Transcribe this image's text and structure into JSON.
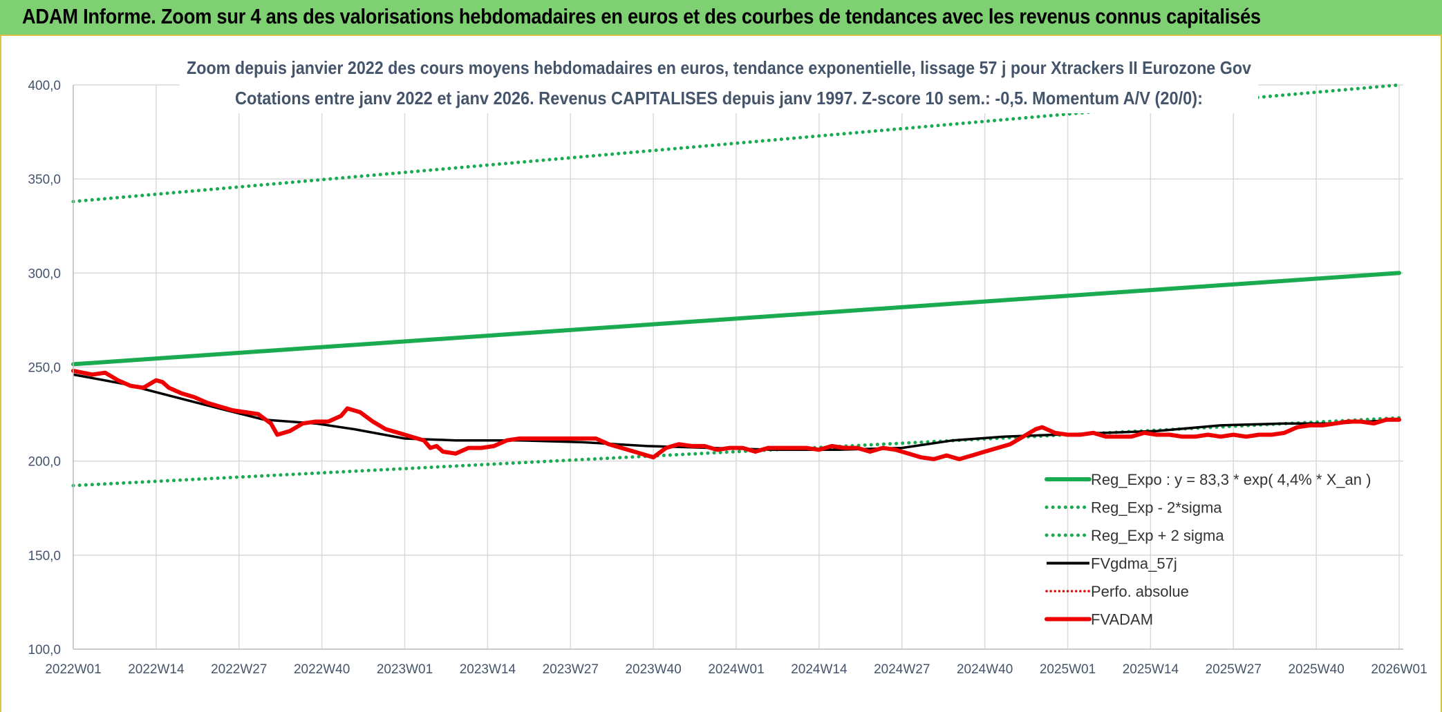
{
  "banner": {
    "title": "ADAM Informe. Zoom sur 4 ans des valorisations hebdomadaires en euros et des courbes de tendances avec les revenus connus capitalisés"
  },
  "colors": {
    "banner_bg": "#7fcf73",
    "trend_green": "#1aaa50",
    "black": "#000000",
    "red": "#ee0000",
    "text": "#44546a",
    "grid": "#d9d9d9"
  },
  "chart_data": {
    "type": "line",
    "title": "Zoom depuis janvier 2022 des cours moyens hebdomadaires en euros, tendance exponentielle, lissage 57 j pour Xtrackers II Eurozone Gov",
    "subtitle": "Cotations entre janv 2022 et janv 2026. Revenus CAPITALISES depuis janv 1997. Z-score 10 sem.: -0,5. Momentum A/V (20/0):",
    "ylim": [
      100,
      400
    ],
    "yticks": [
      "100,0",
      "150,0",
      "200,0",
      "250,0",
      "300,0",
      "350,0",
      "400,0"
    ],
    "ytick_values": [
      100,
      150,
      200,
      250,
      300,
      350,
      400
    ],
    "xticks": [
      "2022W01",
      "2022W14",
      "2022W27",
      "2022W40",
      "2023W01",
      "2023W14",
      "2023W27",
      "2023W40",
      "2024W01",
      "2024W14",
      "2024W27",
      "2024W40",
      "2025W01",
      "2025W14",
      "2025W27",
      "2025W40",
      "2026W01"
    ],
    "x_weeks_total": 208,
    "series": [
      {
        "name": "Reg_Expo : y = 83,3 * exp( 4,4% *  X_an )",
        "style": "solid-thick",
        "color": "#1aaa50",
        "points": [
          [
            0,
            251.5
          ],
          [
            208,
            300
          ]
        ]
      },
      {
        "name": "Reg_Exp - 2*sigma",
        "style": "dotted",
        "color": "#1aaa50",
        "points": [
          [
            0,
            187
          ],
          [
            208,
            223
          ]
        ]
      },
      {
        "name": "Reg_Exp + 2 sigma",
        "style": "dotted",
        "color": "#1aaa50",
        "points": [
          [
            0,
            338
          ],
          [
            208,
            400
          ]
        ]
      },
      {
        "name": "FVgdma_57j",
        "style": "solid",
        "color": "#000000",
        "points": [
          [
            0,
            246
          ],
          [
            8,
            241
          ],
          [
            16,
            234
          ],
          [
            24,
            227
          ],
          [
            30,
            222
          ],
          [
            38,
            220
          ],
          [
            44,
            217
          ],
          [
            52,
            212
          ],
          [
            60,
            211
          ],
          [
            70,
            211
          ],
          [
            80,
            210
          ],
          [
            90,
            208
          ],
          [
            100,
            207
          ],
          [
            110,
            206
          ],
          [
            120,
            206
          ],
          [
            130,
            207
          ],
          [
            138,
            211
          ],
          [
            146,
            213
          ],
          [
            154,
            214
          ],
          [
            162,
            215
          ],
          [
            170,
            216
          ],
          [
            180,
            219
          ],
          [
            190,
            220
          ],
          [
            198,
            220
          ],
          [
            208,
            222
          ]
        ]
      },
      {
        "name": "Perfo. absolue",
        "style": "dotted",
        "color": "#ee0000",
        "points": []
      },
      {
        "name": "FVADAM",
        "style": "solid-thick",
        "color": "#ee0000",
        "points": [
          [
            0,
            248
          ],
          [
            3,
            246
          ],
          [
            5,
            247
          ],
          [
            7,
            243
          ],
          [
            9,
            240
          ],
          [
            11,
            239
          ],
          [
            13,
            243
          ],
          [
            14,
            242
          ],
          [
            15,
            239
          ],
          [
            17,
            236
          ],
          [
            19,
            234
          ],
          [
            21,
            231
          ],
          [
            23,
            229
          ],
          [
            25,
            227
          ],
          [
            27,
            226
          ],
          [
            29,
            225
          ],
          [
            31,
            220
          ],
          [
            32,
            214
          ],
          [
            34,
            216
          ],
          [
            36,
            220
          ],
          [
            38,
            221
          ],
          [
            40,
            221
          ],
          [
            42,
            224
          ],
          [
            43,
            228
          ],
          [
            45,
            226
          ],
          [
            47,
            221
          ],
          [
            49,
            217
          ],
          [
            51,
            215
          ],
          [
            53,
            213
          ],
          [
            55,
            211
          ],
          [
            56,
            207
          ],
          [
            57,
            208
          ],
          [
            58,
            205
          ],
          [
            60,
            204
          ],
          [
            62,
            207
          ],
          [
            64,
            207
          ],
          [
            66,
            208
          ],
          [
            68,
            211
          ],
          [
            70,
            212
          ],
          [
            74,
            212
          ],
          [
            78,
            212
          ],
          [
            82,
            212
          ],
          [
            84,
            209
          ],
          [
            86,
            207
          ],
          [
            88,
            205
          ],
          [
            90,
            203
          ],
          [
            91,
            202
          ],
          [
            93,
            207
          ],
          [
            95,
            209
          ],
          [
            97,
            208
          ],
          [
            99,
            208
          ],
          [
            101,
            206
          ],
          [
            103,
            207
          ],
          [
            105,
            207
          ],
          [
            107,
            205
          ],
          [
            109,
            207
          ],
          [
            111,
            207
          ],
          [
            113,
            207
          ],
          [
            115,
            207
          ],
          [
            117,
            206
          ],
          [
            119,
            208
          ],
          [
            121,
            207
          ],
          [
            123,
            207
          ],
          [
            125,
            205
          ],
          [
            127,
            207
          ],
          [
            129,
            206
          ],
          [
            131,
            204
          ],
          [
            133,
            202
          ],
          [
            135,
            201
          ],
          [
            137,
            203
          ],
          [
            139,
            201
          ],
          [
            141,
            203
          ],
          [
            143,
            205
          ],
          [
            145,
            207
          ],
          [
            147,
            209
          ],
          [
            149,
            213
          ],
          [
            151,
            217
          ],
          [
            152,
            218
          ],
          [
            154,
            215
          ],
          [
            156,
            214
          ],
          [
            158,
            214
          ],
          [
            160,
            215
          ],
          [
            162,
            213
          ],
          [
            164,
            213
          ],
          [
            166,
            213
          ],
          [
            168,
            215
          ],
          [
            170,
            214
          ],
          [
            172,
            214
          ],
          [
            174,
            213
          ],
          [
            176,
            213
          ],
          [
            178,
            214
          ],
          [
            180,
            213
          ],
          [
            182,
            214
          ],
          [
            184,
            213
          ],
          [
            186,
            214
          ],
          [
            188,
            214
          ],
          [
            190,
            215
          ],
          [
            192,
            218
          ],
          [
            194,
            219
          ],
          [
            196,
            219
          ],
          [
            198,
            220
          ],
          [
            200,
            221
          ],
          [
            202,
            221
          ],
          [
            204,
            220
          ],
          [
            206,
            222
          ],
          [
            208,
            222
          ]
        ]
      }
    ],
    "legend": {
      "position": "bottom-right",
      "entries": [
        "Reg_Expo : y = 83,3 * exp( 4,4% *  X_an )",
        "Reg_Exp - 2*sigma",
        "Reg_Exp + 2 sigma",
        "FVgdma_57j",
        "Perfo. absolue",
        "FVADAM"
      ]
    },
    "grid": true
  }
}
